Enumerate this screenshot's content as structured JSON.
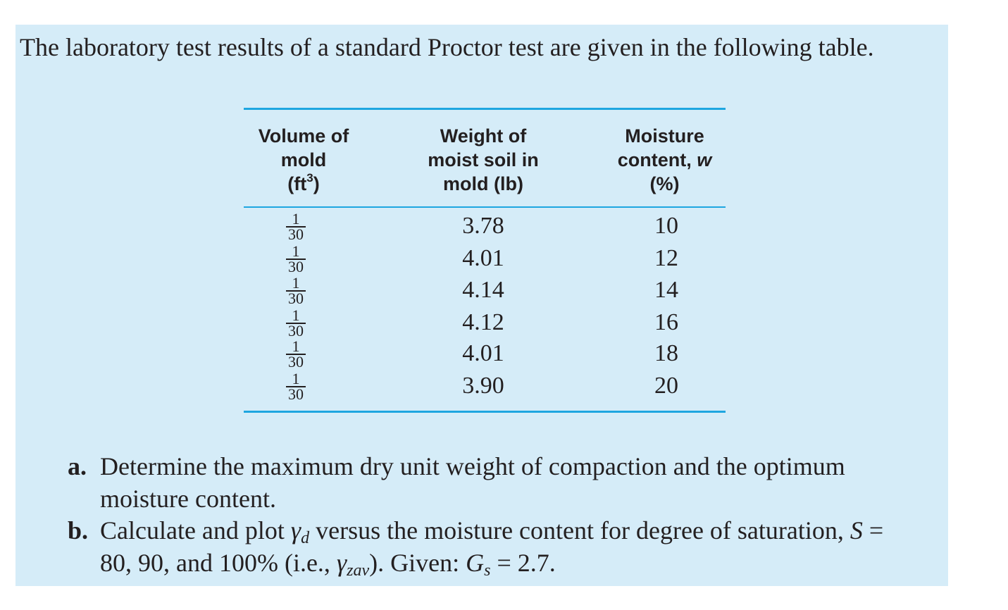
{
  "intro": "The laboratory test results of a standard Proctor test are given in the following table.",
  "table": {
    "headers": [
      [
        "Volume of",
        "mold",
        "(ft",
        "3",
        ")"
      ],
      [
        "Weight of",
        "moist soil in",
        "mold (lb)"
      ],
      [
        "Moisture",
        "content, ",
        "w",
        "(%)"
      ]
    ],
    "rows": [
      {
        "volume_num": "1",
        "volume_den": "30",
        "weight": "3.78",
        "moisture": "10"
      },
      {
        "volume_num": "1",
        "volume_den": "30",
        "weight": "4.01",
        "moisture": "12"
      },
      {
        "volume_num": "1",
        "volume_den": "30",
        "weight": "4.14",
        "moisture": "14"
      },
      {
        "volume_num": "1",
        "volume_den": "30",
        "weight": "4.12",
        "moisture": "16"
      },
      {
        "volume_num": "1",
        "volume_den": "30",
        "weight": "4.01",
        "moisture": "18"
      },
      {
        "volume_num": "1",
        "volume_den": "30",
        "weight": "3.90",
        "moisture": "20"
      }
    ]
  },
  "questions": {
    "a": {
      "label": "a.",
      "line1": "Determine the maximum dry unit weight of compaction and the optimum",
      "line2": "moisture content."
    },
    "b": {
      "label": "b.",
      "line1_a": "Calculate and plot ",
      "gamma": "γ",
      "sub_d": "d",
      "line1_b": " versus the moisture content for degree of saturation, ",
      "S": "S",
      "line1_c": " =",
      "line2_a": "80, 90, and 100% (i.e., ",
      "gamma2": "γ",
      "sub_zav": "zav",
      "line2_b": "). Given: ",
      "G": "G",
      "sub_s": "s",
      "line2_c": " = 2.7."
    }
  },
  "colors": {
    "panel_bg": "#d5ecf8",
    "rule": "#1ea6e0",
    "text": "#231f20"
  }
}
